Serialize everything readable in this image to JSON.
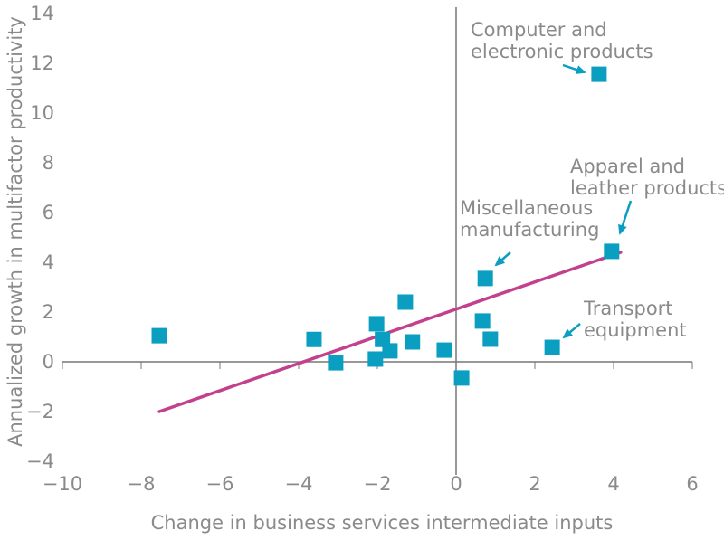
{
  "chart_data": {
    "type": "scatter",
    "xlabel": "Change in business services intermediate inputs",
    "ylabel": "Annualized growth in multifactor productivity",
    "xlim": [
      -10,
      6
    ],
    "ylim": [
      -4,
      14
    ],
    "xticks": [
      -10,
      -8,
      -6,
      -4,
      -2,
      0,
      2,
      4,
      6
    ],
    "yticks": [
      -4,
      -2,
      0,
      2,
      4,
      6,
      8,
      10,
      12,
      14
    ],
    "grid": false,
    "colors": {
      "points": "#0a9fc0",
      "trend": "#c2408e",
      "axis": "#777777"
    },
    "points": [
      {
        "x": -7.54,
        "y": 1.05
      },
      {
        "x": -3.61,
        "y": 0.9
      },
      {
        "x": -3.06,
        "y": -0.04
      },
      {
        "x": -2.02,
        "y": 1.53
      },
      {
        "x": -2.05,
        "y": 0.11
      },
      {
        "x": -1.87,
        "y": 0.9
      },
      {
        "x": -1.68,
        "y": 0.44
      },
      {
        "x": -1.29,
        "y": 2.4
      },
      {
        "x": -1.11,
        "y": 0.8
      },
      {
        "x": -0.3,
        "y": 0.47
      },
      {
        "x": 0.14,
        "y": -0.65
      },
      {
        "x": 0.67,
        "y": 1.64
      },
      {
        "x": 0.74,
        "y": 3.35
      },
      {
        "x": 0.87,
        "y": 0.91
      },
      {
        "x": 2.44,
        "y": 0.58
      },
      {
        "x": 3.95,
        "y": 4.44
      },
      {
        "x": 3.63,
        "y": 11.56
      }
    ],
    "trendline": {
      "x": [
        -7.54,
        4.18
      ],
      "y": [
        -2.0,
        4.4
      ]
    },
    "annotations": [
      {
        "lines": [
          "Computer and",
          "electronic products"
        ],
        "target": {
          "x": 3.63,
          "y": 11.56
        }
      },
      {
        "lines": [
          "Apparel and",
          "leather products"
        ],
        "target": {
          "x": 3.95,
          "y": 4.44
        }
      },
      {
        "lines": [
          "Miscellaneous",
          "manufacturing"
        ],
        "target": {
          "x": 0.74,
          "y": 3.35
        }
      },
      {
        "lines": [
          "Transport",
          "equipment"
        ],
        "target": {
          "x": 2.44,
          "y": 0.58
        }
      }
    ]
  }
}
